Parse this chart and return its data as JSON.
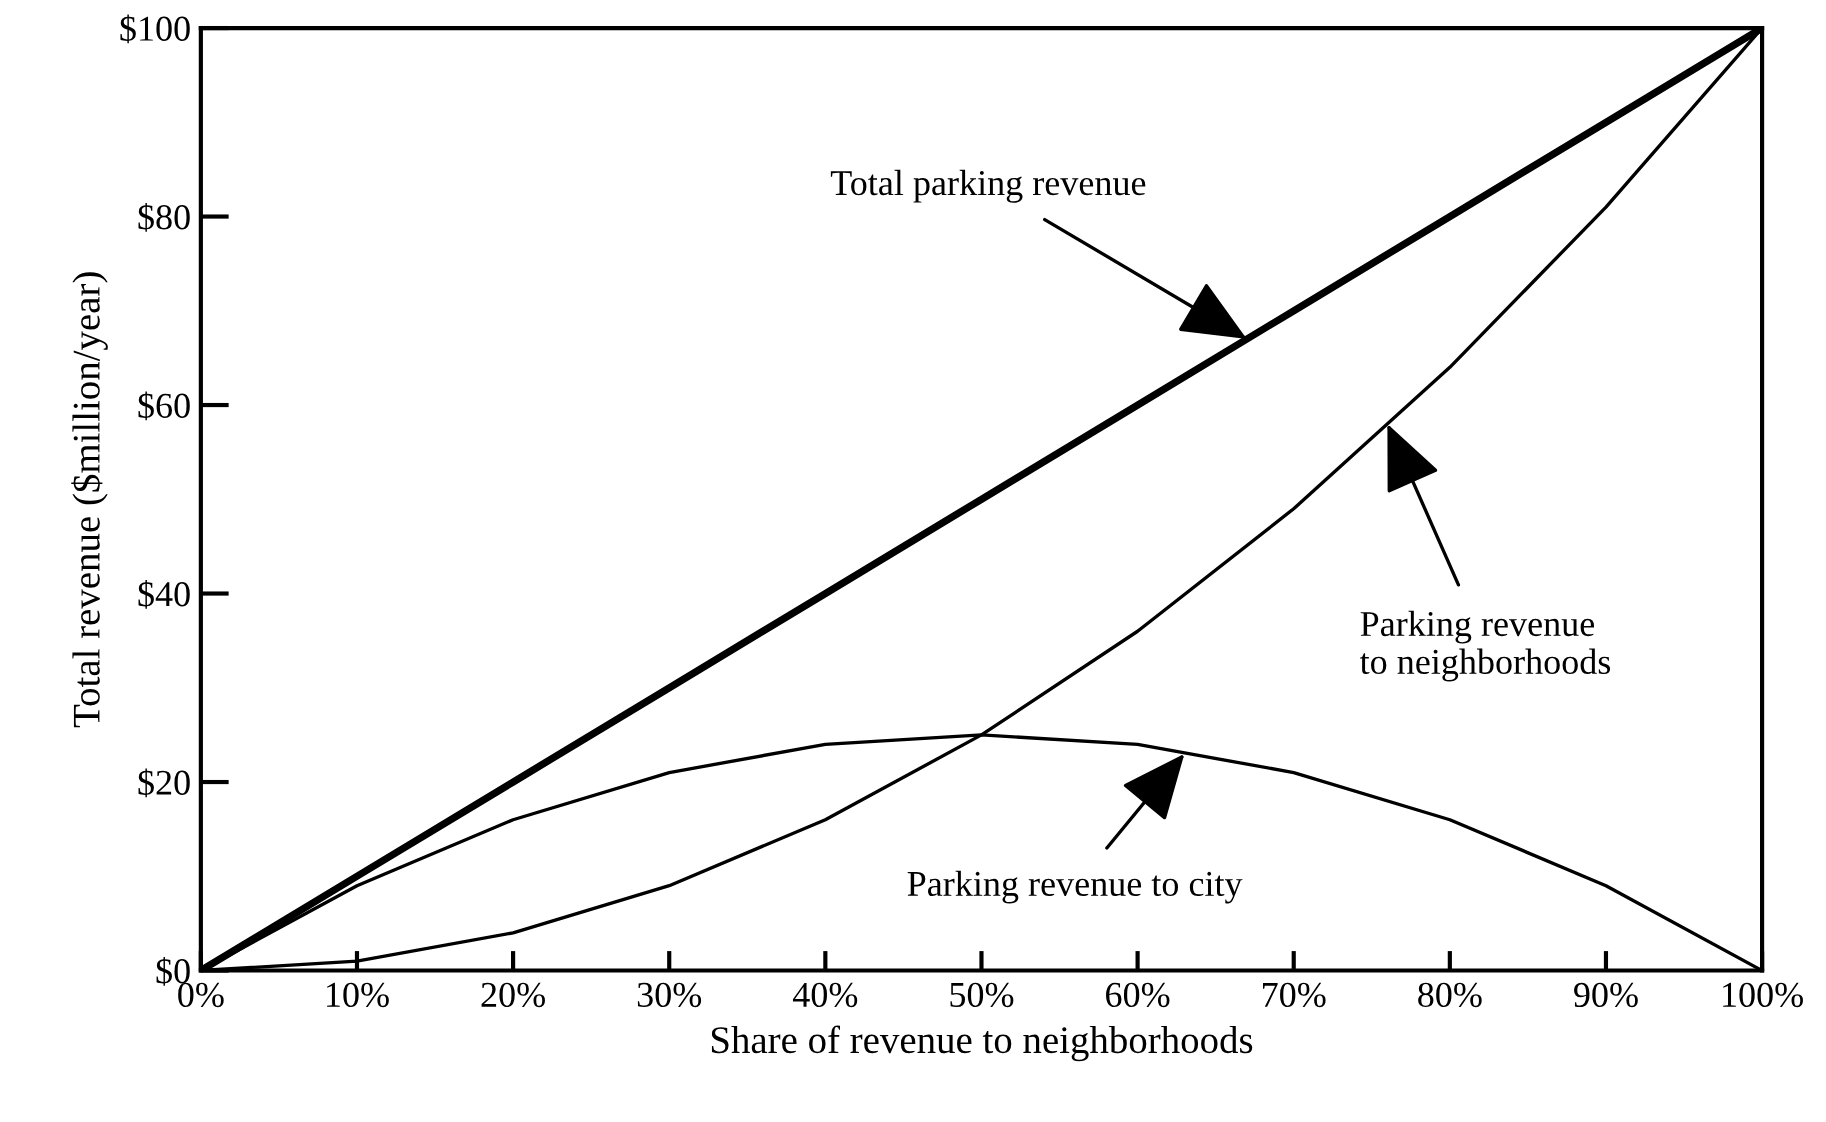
{
  "chart_data": {
    "type": "line",
    "xlabel": "Share of revenue to neighborhoods",
    "ylabel": "Total revenue ($million/year)",
    "x": [
      0,
      10,
      20,
      30,
      40,
      50,
      60,
      70,
      80,
      90,
      100
    ],
    "series": [
      {
        "color": "#000000",
        "values": [
          0,
          10,
          20,
          30,
          40,
          50,
          60,
          70,
          80,
          90,
          100
        ]
      },
      {
        "color": "#000000",
        "values": [
          0,
          1,
          4,
          9,
          16,
          25,
          36,
          49,
          64,
          81,
          100
        ]
      },
      {
        "color": "#000000",
        "values": [
          0,
          9,
          16,
          21,
          24,
          25,
          24,
          21,
          16,
          9,
          0
        ]
      }
    ],
    "xlim": [
      0,
      100
    ],
    "ylim": [
      0,
      100
    ],
    "xticks": [
      {
        "value": 0,
        "label": "0%"
      },
      {
        "value": 10,
        "label": "10%"
      },
      {
        "value": 20,
        "label": "20%"
      },
      {
        "value": 30,
        "label": "30%"
      },
      {
        "value": 40,
        "label": "40%"
      },
      {
        "value": 50,
        "label": "50%"
      },
      {
        "value": 60,
        "label": "60%"
      },
      {
        "value": 70,
        "label": "70%"
      },
      {
        "value": 80,
        "label": "80%"
      },
      {
        "value": 90,
        "label": "90%"
      },
      {
        "value": 100,
        "label": "100%"
      }
    ],
    "yticks": [
      {
        "value": 0,
        "label": "$0"
      },
      {
        "value": 20,
        "label": "$20"
      },
      {
        "value": 40,
        "label": "$40"
      },
      {
        "value": 60,
        "label": "$60"
      },
      {
        "value": 80,
        "label": "$80"
      },
      {
        "value": 100,
        "label": "$100"
      }
    ],
    "annotations": [
      {
        "text": "Total parking revenue",
        "x": 67,
        "y": 67
      },
      {
        "text": "Parking revenue\nto neighborhoods",
        "x": 76,
        "y": 58
      },
      {
        "text": "Parking revenue to city",
        "x": 63,
        "y": 23
      }
    ],
    "grid": false,
    "legend": false,
    "marker": "none",
    "line_style": "solid"
  }
}
